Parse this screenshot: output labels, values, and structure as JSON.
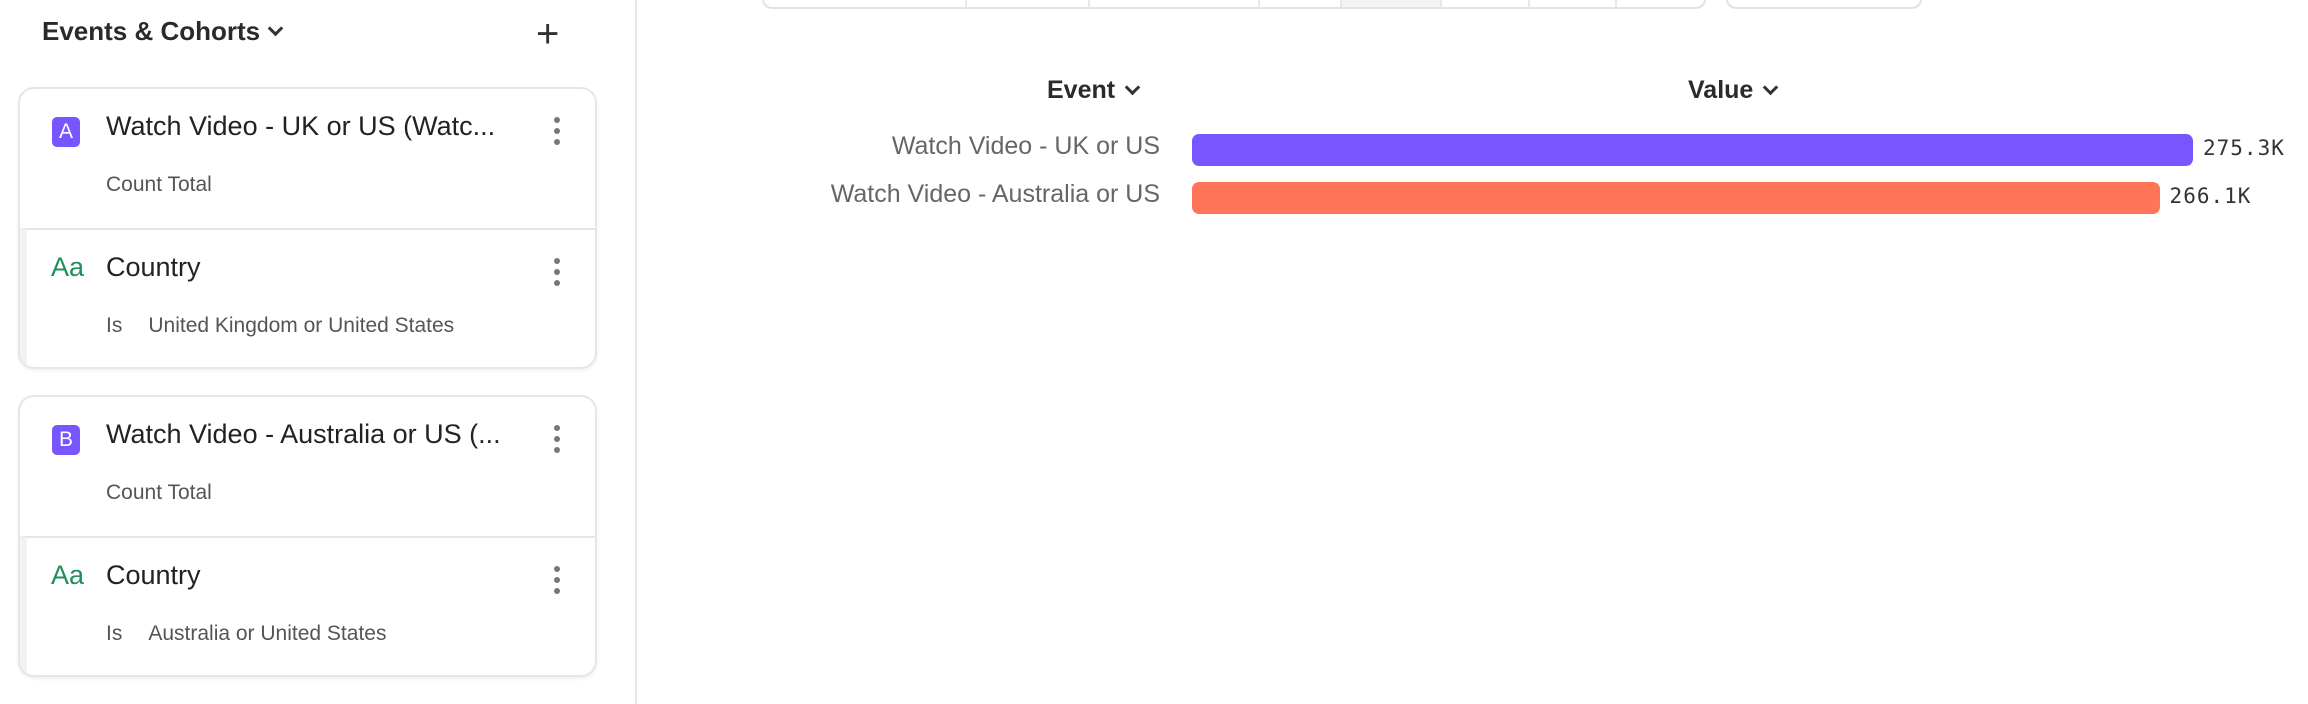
{
  "sidebar": {
    "header": "Events & Cohorts",
    "cards": [
      {
        "badge": "A",
        "title": "Watch Video - UK or US (Watc...",
        "measure": "Count Total",
        "filter": {
          "icon": "Aa",
          "property": "Country",
          "operator": "Is",
          "value": "United Kingdom or United States"
        }
      },
      {
        "badge": "B",
        "title": "Watch Video - Australia or US (...",
        "measure": "Count Total",
        "filter": {
          "icon": "Aa",
          "property": "Country",
          "operator": "Is",
          "value": "Australia or United States"
        }
      }
    ]
  },
  "chart_data": {
    "type": "bar",
    "orientation": "horizontal",
    "column_headers": [
      "Event",
      "Value"
    ],
    "categories": [
      "Watch Video - UK or US",
      "Watch Video - Australia or US"
    ],
    "values": [
      275.3,
      266.1
    ],
    "value_labels": [
      "275.3K",
      "266.1K"
    ],
    "unit": "K",
    "colors": [
      "#7856ff",
      "#ff7557"
    ]
  }
}
